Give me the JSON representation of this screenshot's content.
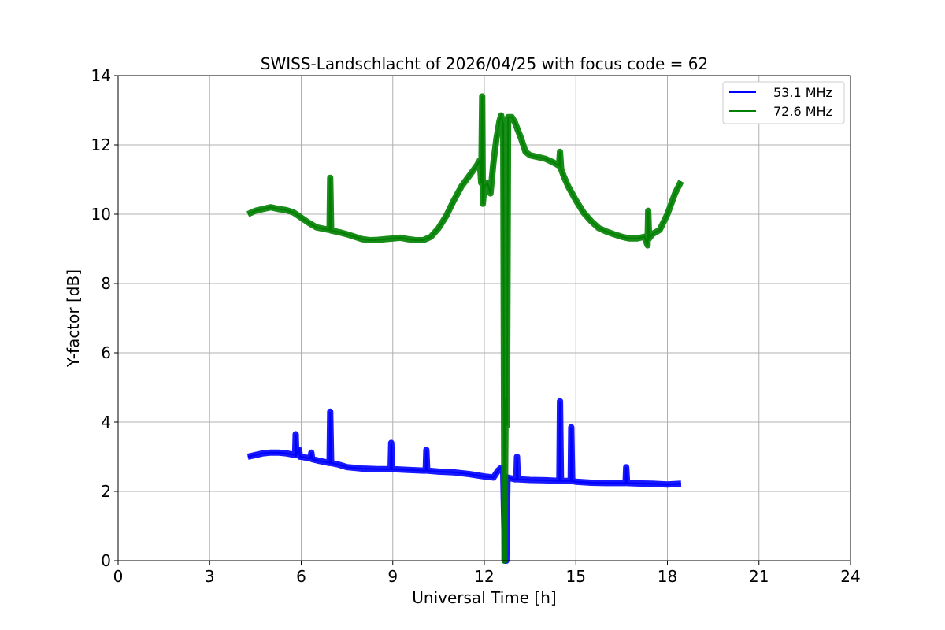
{
  "chart_data": {
    "type": "line",
    "title": "SWISS-Landschlacht of 2026/04/25 with focus code = 62",
    "xlabel": "Universal Time [h]",
    "ylabel": "Y-factor [dB]",
    "xlim": [
      0,
      24
    ],
    "ylim": [
      0,
      14
    ],
    "xticks": [
      "0",
      "3",
      "6",
      "9",
      "12",
      "15",
      "18",
      "21",
      "24"
    ],
    "yticks": [
      "0",
      "2",
      "4",
      "6",
      "8",
      "10",
      "12",
      "14"
    ],
    "grid": true,
    "legend_position": "top-right",
    "series": [
      {
        "name": "53.1 MHz",
        "color": "#0000ff",
        "points": [
          [
            4.25,
            3.0
          ],
          [
            4.5,
            3.05
          ],
          [
            4.75,
            3.1
          ],
          [
            5.0,
            3.12
          ],
          [
            5.25,
            3.12
          ],
          [
            5.5,
            3.1
          ],
          [
            5.8,
            3.05
          ],
          [
            5.82,
            3.65
          ],
          [
            5.84,
            3.05
          ],
          [
            5.93,
            3.2
          ],
          [
            5.96,
            3.0
          ],
          [
            6.0,
            3.0
          ],
          [
            6.3,
            2.95
          ],
          [
            6.33,
            3.12
          ],
          [
            6.36,
            2.93
          ],
          [
            6.6,
            2.88
          ],
          [
            6.93,
            2.82
          ],
          [
            6.95,
            4.3
          ],
          [
            6.98,
            2.82
          ],
          [
            7.2,
            2.78
          ],
          [
            7.5,
            2.7
          ],
          [
            8.0,
            2.66
          ],
          [
            8.5,
            2.64
          ],
          [
            8.93,
            2.64
          ],
          [
            8.95,
            3.4
          ],
          [
            8.98,
            2.64
          ],
          [
            9.5,
            2.62
          ],
          [
            10.0,
            2.6
          ],
          [
            10.08,
            2.6
          ],
          [
            10.1,
            3.2
          ],
          [
            10.13,
            2.6
          ],
          [
            10.5,
            2.57
          ],
          [
            11.0,
            2.55
          ],
          [
            11.5,
            2.5
          ],
          [
            12.0,
            2.43
          ],
          [
            12.3,
            2.4
          ],
          [
            12.45,
            2.6
          ],
          [
            12.55,
            2.68
          ],
          [
            12.62,
            2.55
          ],
          [
            12.68,
            0.0
          ],
          [
            12.72,
            0.0
          ],
          [
            12.76,
            2.4
          ],
          [
            13.0,
            2.35
          ],
          [
            13.05,
            2.35
          ],
          [
            13.07,
            3.0
          ],
          [
            13.1,
            2.35
          ],
          [
            13.5,
            2.33
          ],
          [
            14.0,
            2.32
          ],
          [
            14.46,
            2.3
          ],
          [
            14.48,
            4.6
          ],
          [
            14.51,
            2.3
          ],
          [
            14.83,
            2.3
          ],
          [
            14.85,
            3.85
          ],
          [
            14.88,
            2.3
          ],
          [
            15.0,
            2.28
          ],
          [
            15.5,
            2.25
          ],
          [
            16.0,
            2.24
          ],
          [
            16.5,
            2.24
          ],
          [
            16.63,
            2.24
          ],
          [
            16.65,
            2.7
          ],
          [
            16.68,
            2.24
          ],
          [
            17.0,
            2.23
          ],
          [
            17.5,
            2.22
          ],
          [
            18.0,
            2.2
          ],
          [
            18.45,
            2.22
          ]
        ]
      },
      {
        "name": "72.6 MHz",
        "color": "#008000",
        "points": [
          [
            4.25,
            10.0
          ],
          [
            4.5,
            10.1
          ],
          [
            4.75,
            10.15
          ],
          [
            5.0,
            10.2
          ],
          [
            5.25,
            10.15
          ],
          [
            5.5,
            10.12
          ],
          [
            5.75,
            10.05
          ],
          [
            6.0,
            9.9
          ],
          [
            6.25,
            9.75
          ],
          [
            6.5,
            9.62
          ],
          [
            6.9,
            9.55
          ],
          [
            6.93,
            9.55
          ],
          [
            6.95,
            11.05
          ],
          [
            6.98,
            9.53
          ],
          [
            7.25,
            9.48
          ],
          [
            7.5,
            9.42
          ],
          [
            7.75,
            9.35
          ],
          [
            8.0,
            9.28
          ],
          [
            8.25,
            9.25
          ],
          [
            8.5,
            9.26
          ],
          [
            8.75,
            9.28
          ],
          [
            9.0,
            9.3
          ],
          [
            9.25,
            9.32
          ],
          [
            9.5,
            9.28
          ],
          [
            9.75,
            9.25
          ],
          [
            10.0,
            9.25
          ],
          [
            10.25,
            9.35
          ],
          [
            10.5,
            9.6
          ],
          [
            10.75,
            9.95
          ],
          [
            11.0,
            10.4
          ],
          [
            11.25,
            10.8
          ],
          [
            11.5,
            11.1
          ],
          [
            11.75,
            11.4
          ],
          [
            11.85,
            11.55
          ],
          [
            11.9,
            10.9
          ],
          [
            11.93,
            13.4
          ],
          [
            11.95,
            10.3
          ],
          [
            12.0,
            10.8
          ],
          [
            12.1,
            10.9
          ],
          [
            12.2,
            10.6
          ],
          [
            12.3,
            11.5
          ],
          [
            12.4,
            12.2
          ],
          [
            12.5,
            12.7
          ],
          [
            12.55,
            12.85
          ],
          [
            12.62,
            12.6
          ],
          [
            12.66,
            0.0
          ],
          [
            12.7,
            4.7
          ],
          [
            12.74,
            3.9
          ],
          [
            12.78,
            12.8
          ],
          [
            12.9,
            12.8
          ],
          [
            13.0,
            12.65
          ],
          [
            13.2,
            12.2
          ],
          [
            13.35,
            11.8
          ],
          [
            13.5,
            11.7
          ],
          [
            13.75,
            11.65
          ],
          [
            14.0,
            11.6
          ],
          [
            14.25,
            11.5
          ],
          [
            14.45,
            11.4
          ],
          [
            14.48,
            11.8
          ],
          [
            14.52,
            11.3
          ],
          [
            14.6,
            11.1
          ],
          [
            14.75,
            10.8
          ],
          [
            15.0,
            10.4
          ],
          [
            15.25,
            10.05
          ],
          [
            15.5,
            9.8
          ],
          [
            15.75,
            9.6
          ],
          [
            16.0,
            9.5
          ],
          [
            16.25,
            9.42
          ],
          [
            16.5,
            9.35
          ],
          [
            16.75,
            9.3
          ],
          [
            17.0,
            9.3
          ],
          [
            17.25,
            9.35
          ],
          [
            17.35,
            9.1
          ],
          [
            17.37,
            10.1
          ],
          [
            17.4,
            9.3
          ],
          [
            17.5,
            9.42
          ],
          [
            17.75,
            9.55
          ],
          [
            18.0,
            10.0
          ],
          [
            18.25,
            10.6
          ],
          [
            18.45,
            10.95
          ]
        ]
      }
    ]
  }
}
